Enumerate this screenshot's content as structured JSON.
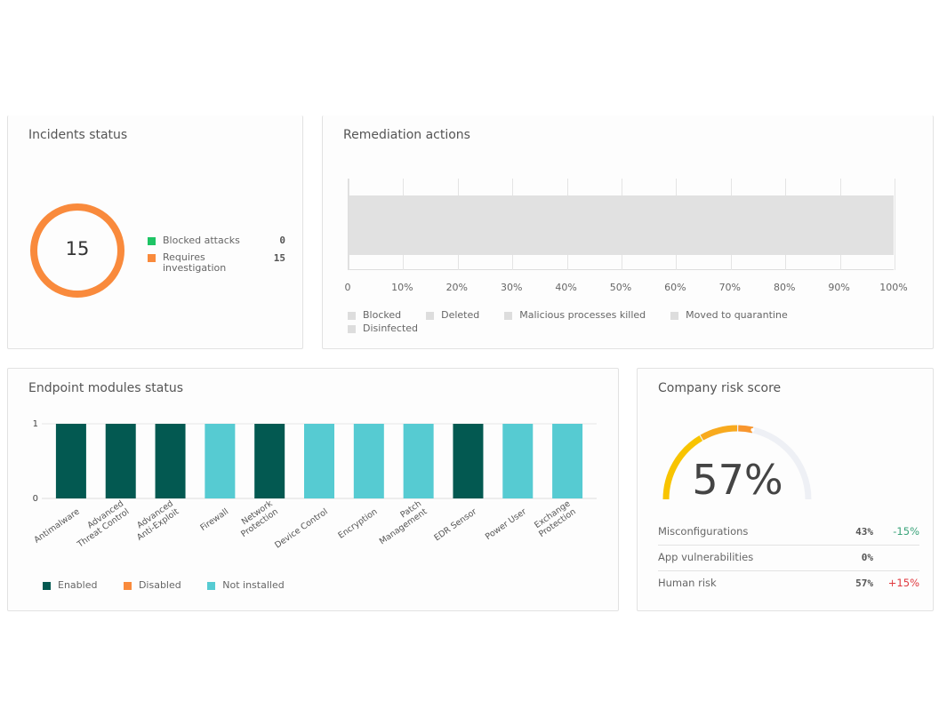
{
  "incidents": {
    "title": "Incidents status",
    "total": "15",
    "legend": [
      {
        "label": "Blocked attacks",
        "value": "0",
        "color": "#1ec465"
      },
      {
        "label": "Requires investigation",
        "value": "15",
        "color": "#f98a3c"
      }
    ]
  },
  "remediation": {
    "title": "Remediation actions",
    "ticks": [
      "0",
      "10%",
      "20%",
      "30%",
      "40%",
      "50%",
      "60%",
      "70%",
      "80%",
      "90%",
      "100%"
    ],
    "legend": [
      "Blocked",
      "Deleted",
      "Malicious processes killed",
      "Moved to quarantine",
      "Disinfected"
    ]
  },
  "endpoint": {
    "title": "Endpoint modules status",
    "legend": [
      {
        "label": "Enabled",
        "color": "#035951"
      },
      {
        "label": "Disabled",
        "color": "#f98a3c"
      },
      {
        "label": "Not installed",
        "color": "#56cbd2"
      }
    ]
  },
  "chart_data": {
    "type": "bar",
    "y_ticks": [
      "1",
      "0"
    ],
    "ylim": [
      0,
      1
    ],
    "categories": [
      "Antimalware",
      "Advanced Threat Control",
      "Advanced Anti-Exploit",
      "Firewall",
      "Network Protection",
      "Device Control",
      "Encryption",
      "Patch Management",
      "EDR Sensor",
      "Power User",
      "Exchange Protection"
    ],
    "category_labels": [
      [
        "Antimalware"
      ],
      [
        "Advanced",
        "Threat Control"
      ],
      [
        "Advanced",
        "Anti-Exploit"
      ],
      [
        "Firewall"
      ],
      [
        "Network",
        "Protection"
      ],
      [
        "Device Control"
      ],
      [
        "Encryption"
      ],
      [
        "Patch",
        "Management"
      ],
      [
        "EDR Sensor"
      ],
      [
        "Power User"
      ],
      [
        "Exchange",
        "Protection"
      ]
    ],
    "status": [
      "Enabled",
      "Enabled",
      "Enabled",
      "Not installed",
      "Enabled",
      "Not installed",
      "Not installed",
      "Not installed",
      "Enabled",
      "Not installed",
      "Not installed"
    ],
    "values": [
      1,
      1,
      1,
      1,
      1,
      1,
      1,
      1,
      1,
      1,
      1
    ]
  },
  "risk": {
    "title": "Company risk score",
    "score": "57%",
    "score_value": 57,
    "rows": [
      {
        "label": "Misconfigurations",
        "value": "43%",
        "delta": "-15%",
        "delta_color": "#3aa37a"
      },
      {
        "label": "App vulnerabilities",
        "value": "0%",
        "delta": "",
        "delta_color": ""
      },
      {
        "label": "Human risk",
        "value": "57%",
        "delta": "+15%",
        "delta_color": "#e0383e"
      }
    ]
  }
}
